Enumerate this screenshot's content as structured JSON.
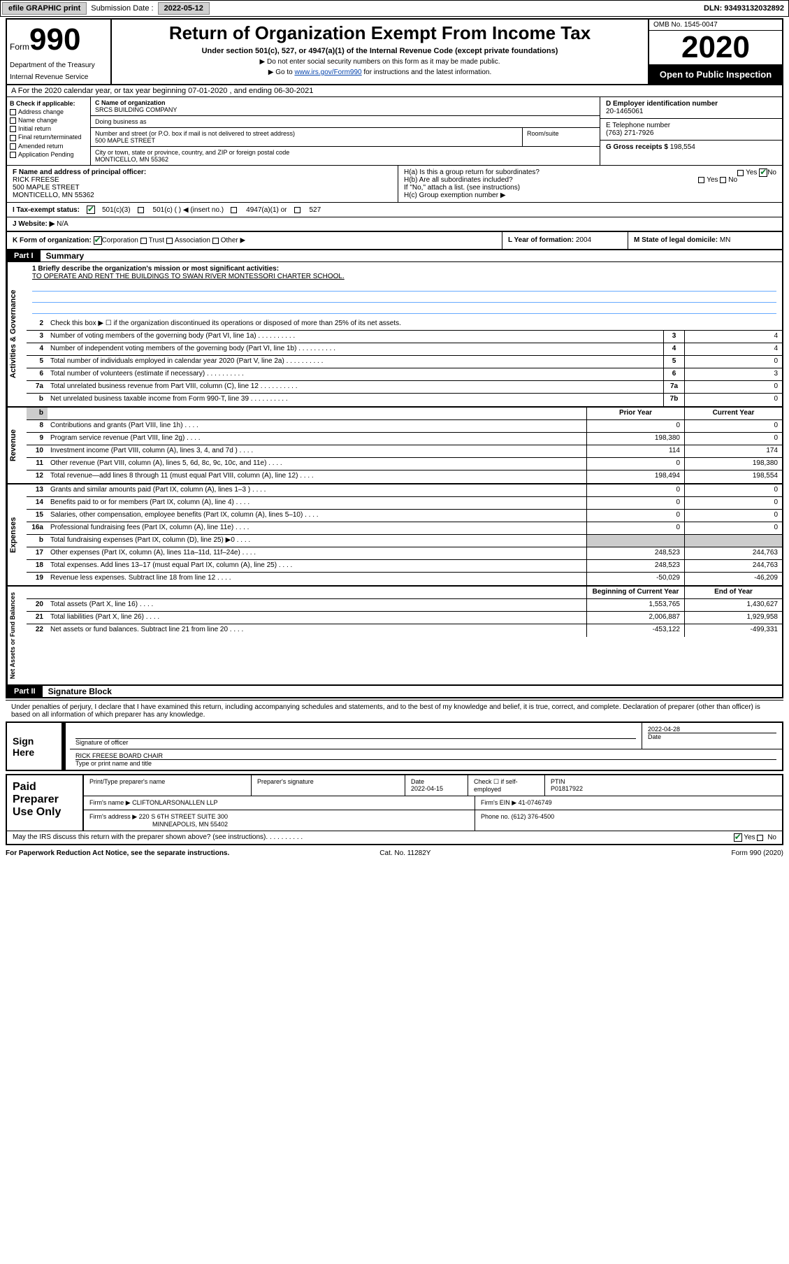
{
  "top": {
    "efile": "efile GRAPHIC print",
    "submission_label": "Submission Date : ",
    "submission_date": "2022-05-12",
    "dln_label": "DLN: ",
    "dln": "93493132032892"
  },
  "header": {
    "form_word": "Form",
    "form_num": "990",
    "dept1": "Department of the Treasury",
    "dept2": "Internal Revenue Service",
    "title": "Return of Organization Exempt From Income Tax",
    "subtitle": "Under section 501(c), 527, or 4947(a)(1) of the Internal Revenue Code (except private foundations)",
    "sub1": "▶ Do not enter social security numbers on this form as it may be made public.",
    "sub2_pre": "▶ Go to ",
    "sub2_link": "www.irs.gov/Form990",
    "sub2_post": " for instructions and the latest information.",
    "omb": "OMB No. 1545-0047",
    "year": "2020",
    "open": "Open to Public Inspection"
  },
  "rowA": "A For the 2020 calendar year, or tax year beginning 07-01-2020  , and ending 06-30-2021",
  "colB": {
    "hdr": "B Check if applicable:",
    "items": [
      "Address change",
      "Name change",
      "Initial return",
      "Final return/terminated",
      "Amended return",
      "Application Pending"
    ]
  },
  "colC": {
    "name_lbl": "C Name of organization",
    "name": "SRCS BUILDING COMPANY",
    "dba_lbl": "Doing business as",
    "street_lbl": "Number and street (or P.O. box if mail is not delivered to street address)",
    "roomsuite": "Room/suite",
    "street": "500 MAPLE STREET",
    "city_lbl": "City or town, state or province, country, and ZIP or foreign postal code",
    "city": "MONTICELLO, MN  55362"
  },
  "colDE": {
    "ein_lbl": "D Employer identification number",
    "ein": "20-1465061",
    "phone_lbl": "E Telephone number",
    "phone": "(763) 271-7926",
    "gross_lbl": "G Gross receipts $ ",
    "gross": "198,554"
  },
  "rowF": {
    "lbl": "F Name and address of principal officer:",
    "name": "RICK FREESE",
    "addr1": "500 MAPLE STREET",
    "addr2": "MONTICELLO, MN  55362"
  },
  "rowH": {
    "ha": "H(a)  Is this a group return for subordinates?",
    "hb": "H(b)  Are all subordinates included?",
    "hnote": "If \"No,\" attach a list. (see instructions)",
    "hc": "H(c)  Group exemption number ▶",
    "yes": "Yes",
    "no": "No"
  },
  "rowI": {
    "lbl": "I   Tax-exempt status:",
    "opts": [
      "501(c)(3)",
      "501(c) (  ) ◀ (insert no.)",
      "4947(a)(1) or",
      "527"
    ]
  },
  "rowJ": {
    "lbl": "J   Website: ▶",
    "val": "N/A"
  },
  "rowK": {
    "lbl": "K Form of organization:",
    "opts": [
      "Corporation",
      "Trust",
      "Association",
      "Other ▶"
    ]
  },
  "rowL": {
    "lbl": "L Year of formation: ",
    "val": "2004"
  },
  "rowM": {
    "lbl": "M State of legal domicile: ",
    "val": "MN"
  },
  "part1": {
    "hdr": "Part I",
    "title": "Summary",
    "tabs": [
      "Activities & Governance",
      "Revenue",
      "Expenses",
      "Net Assets or Fund Balances"
    ],
    "mission_lbl": "1   Briefly describe the organization's mission or most significant activities:",
    "mission": "TO OPERATE AND RENT THE BUILDINGS TO SWAN RIVER MONTESSORI CHARTER SCHOOL.",
    "line2": "Check this box ▶ ☐ if the organization discontinued its operations or disposed of more than 25% of its net assets.",
    "col_prior": "Prior Year",
    "col_current": "Current Year",
    "col_begin": "Beginning of Current Year",
    "col_end": "End of Year",
    "gov_lines": [
      {
        "n": "3",
        "d": "Number of voting members of the governing body (Part VI, line 1a)",
        "box": "3",
        "v": "4"
      },
      {
        "n": "4",
        "d": "Number of independent voting members of the governing body (Part VI, line 1b)",
        "box": "4",
        "v": "4"
      },
      {
        "n": "5",
        "d": "Total number of individuals employed in calendar year 2020 (Part V, line 2a)",
        "box": "5",
        "v": "0"
      },
      {
        "n": "6",
        "d": "Total number of volunteers (estimate if necessary)",
        "box": "6",
        "v": "3"
      },
      {
        "n": "7a",
        "d": "Total unrelated business revenue from Part VIII, column (C), line 12",
        "box": "7a",
        "v": "0"
      },
      {
        "n": "b",
        "d": "Net unrelated business taxable income from Form 990-T, line 39",
        "box": "7b",
        "v": "0"
      }
    ],
    "rev_lines": [
      {
        "n": "8",
        "d": "Contributions and grants (Part VIII, line 1h)",
        "p": "0",
        "c": "0"
      },
      {
        "n": "9",
        "d": "Program service revenue (Part VIII, line 2g)",
        "p": "198,380",
        "c": "0"
      },
      {
        "n": "10",
        "d": "Investment income (Part VIII, column (A), lines 3, 4, and 7d )",
        "p": "114",
        "c": "174"
      },
      {
        "n": "11",
        "d": "Other revenue (Part VIII, column (A), lines 5, 6d, 8c, 9c, 10c, and 11e)",
        "p": "0",
        "c": "198,380"
      },
      {
        "n": "12",
        "d": "Total revenue—add lines 8 through 11 (must equal Part VIII, column (A), line 12)",
        "p": "198,494",
        "c": "198,554"
      }
    ],
    "exp_lines": [
      {
        "n": "13",
        "d": "Grants and similar amounts paid (Part IX, column (A), lines 1–3 )",
        "p": "0",
        "c": "0"
      },
      {
        "n": "14",
        "d": "Benefits paid to or for members (Part IX, column (A), line 4)",
        "p": "0",
        "c": "0"
      },
      {
        "n": "15",
        "d": "Salaries, other compensation, employee benefits (Part IX, column (A), lines 5–10)",
        "p": "0",
        "c": "0"
      },
      {
        "n": "16a",
        "d": "Professional fundraising fees (Part IX, column (A), line 11e)",
        "p": "0",
        "c": "0"
      },
      {
        "n": "b",
        "d": "Total fundraising expenses (Part IX, column (D), line 25) ▶0",
        "p": "",
        "c": ""
      },
      {
        "n": "17",
        "d": "Other expenses (Part IX, column (A), lines 11a–11d, 11f–24e)",
        "p": "248,523",
        "c": "244,763"
      },
      {
        "n": "18",
        "d": "Total expenses. Add lines 13–17 (must equal Part IX, column (A), line 25)",
        "p": "248,523",
        "c": "244,763"
      },
      {
        "n": "19",
        "d": "Revenue less expenses. Subtract line 18 from line 12",
        "p": "-50,029",
        "c": "-46,209"
      }
    ],
    "net_lines": [
      {
        "n": "20",
        "d": "Total assets (Part X, line 16)",
        "p": "1,553,765",
        "c": "1,430,627"
      },
      {
        "n": "21",
        "d": "Total liabilities (Part X, line 26)",
        "p": "2,006,887",
        "c": "1,929,958"
      },
      {
        "n": "22",
        "d": "Net assets or fund balances. Subtract line 21 from line 20",
        "p": "-453,122",
        "c": "-499,331"
      }
    ]
  },
  "part2": {
    "hdr": "Part II",
    "title": "Signature Block",
    "declare": "Under penalties of perjury, I declare that I have examined this return, including accompanying schedules and statements, and to the best of my knowledge and belief, it is true, correct, and complete. Declaration of preparer (other than officer) is based on all information of which preparer has any knowledge."
  },
  "sign": {
    "lbl": "Sign Here",
    "sig_officer": "Signature of officer",
    "date_lbl": "Date",
    "date": "2022-04-28",
    "name": "RICK FREESE BOARD CHAIR",
    "type_lbl": "Type or print name and title"
  },
  "paid": {
    "lbl": "Paid Preparer Use Only",
    "r1": {
      "c1": "Print/Type preparer's name",
      "c2": "Preparer's signature",
      "c3_lbl": "Date",
      "c3": "2022-04-15",
      "c4": "Check ☐ if self-employed",
      "c5_lbl": "PTIN",
      "c5": "P01817922"
    },
    "r2": {
      "c1_lbl": "Firm's name    ▶",
      "c1": "CLIFTONLARSONALLEN LLP",
      "c2_lbl": "Firm's EIN ▶ ",
      "c2": "41-0746749"
    },
    "r3": {
      "c1_lbl": "Firm's address ▶",
      "c1a": "220 S 6TH STREET SUITE 300",
      "c1b": "MINNEAPOLIS, MN  55402",
      "c2_lbl": "Phone no. ",
      "c2": "(612) 376-4500"
    },
    "discuss": "May the IRS discuss this return with the preparer shown above? (see instructions)"
  },
  "footer": {
    "left": "For Paperwork Reduction Act Notice, see the separate instructions.",
    "mid": "Cat. No. 11282Y",
    "right": "Form 990 (2020)"
  }
}
